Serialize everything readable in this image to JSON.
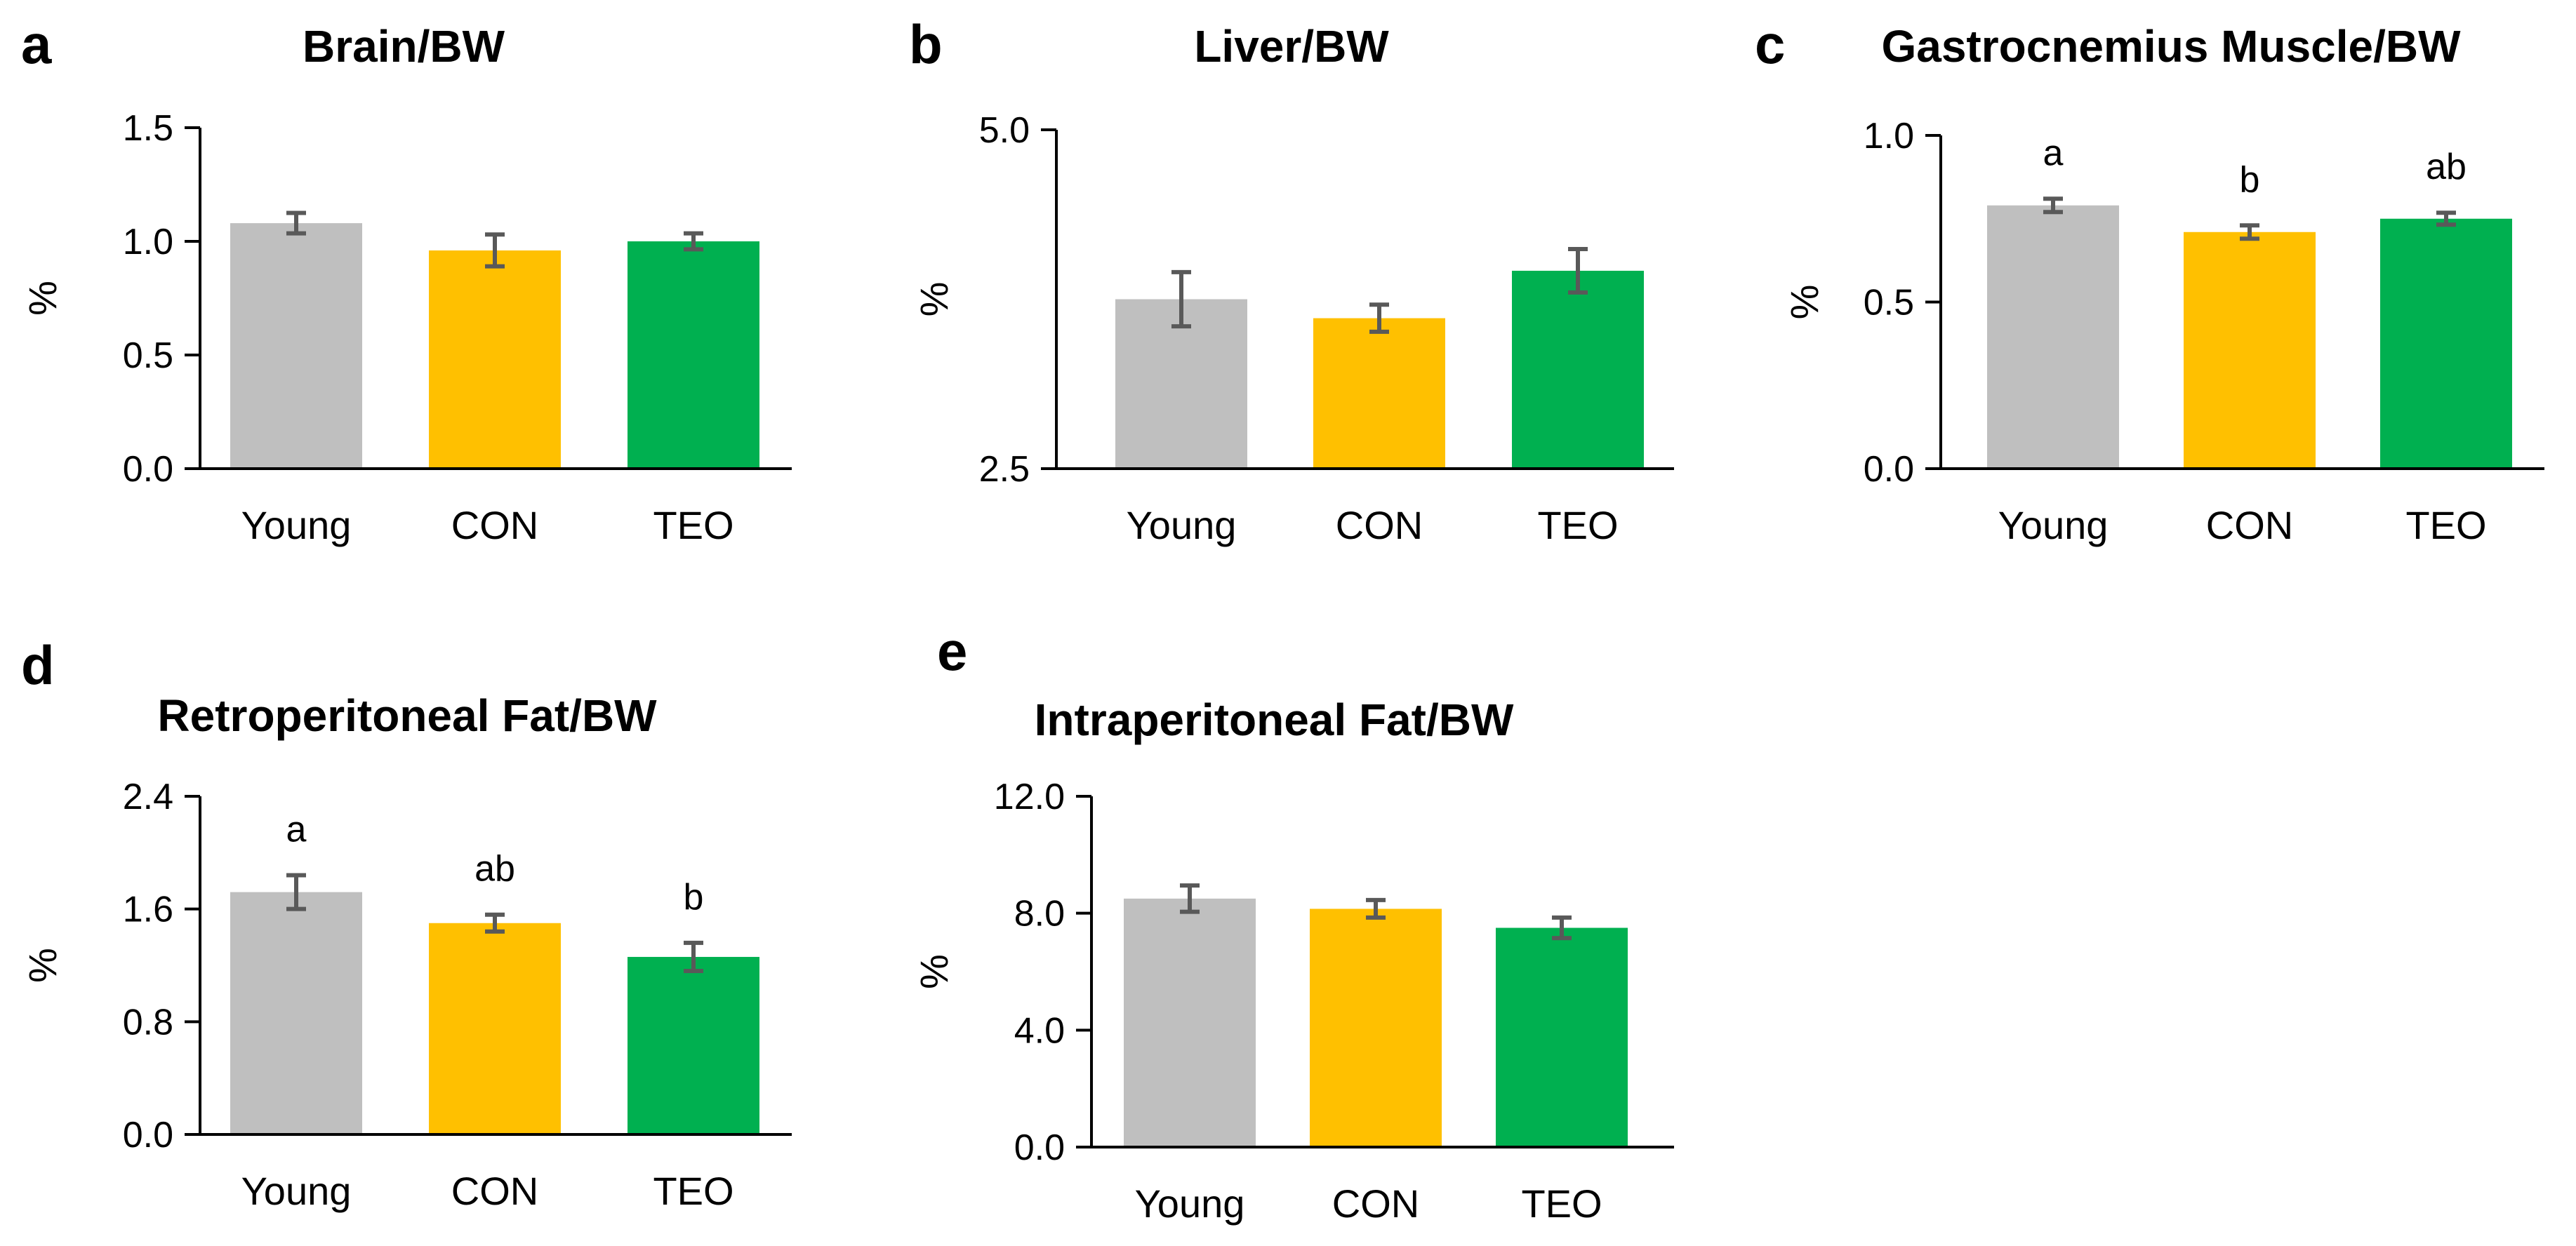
{
  "colors": {
    "Young": "#BFBFBF",
    "CON": "#FFC000",
    "TEO": "#00B050",
    "error": "#595959"
  },
  "chart_data": [
    {
      "panel": "a",
      "type": "bar",
      "title": "Brain/BW",
      "ylabel": "%",
      "categories": [
        "Young",
        "CON",
        "TEO"
      ],
      "values": [
        1.08,
        0.96,
        1.0
      ],
      "errors": [
        0.045,
        0.07,
        0.035
      ],
      "significance": [
        "",
        "",
        ""
      ],
      "ylim": [
        0.0,
        1.5
      ],
      "yticks": [
        0.0,
        0.5,
        1.0,
        1.5
      ],
      "ytick_labels": [
        "0.0",
        "0.5",
        "1.0",
        "1.5"
      ]
    },
    {
      "panel": "b",
      "type": "bar",
      "title": "Liver/BW",
      "ylabel": "%",
      "categories": [
        "Young",
        "CON",
        "TEO"
      ],
      "values": [
        3.75,
        3.61,
        3.96
      ],
      "errors": [
        0.2,
        0.1,
        0.16
      ],
      "significance": [
        "",
        "",
        ""
      ],
      "ylim": [
        2.5,
        5.0
      ],
      "yticks": [
        2.5,
        5.0
      ],
      "ytick_labels": [
        "2.5",
        "5.0"
      ]
    },
    {
      "panel": "c",
      "type": "bar",
      "title": "Gastrocnemius Muscle/BW",
      "ylabel": "%",
      "categories": [
        "Young",
        "CON",
        "TEO"
      ],
      "values": [
        0.79,
        0.71,
        0.75
      ],
      "errors": [
        0.02,
        0.02,
        0.018
      ],
      "significance": [
        "a",
        "b",
        "ab"
      ],
      "ylim": [
        0.0,
        1.0
      ],
      "yticks": [
        0.0,
        0.5,
        1.0
      ],
      "ytick_labels": [
        "0.0",
        "0.5",
        "1.0"
      ]
    },
    {
      "panel": "d",
      "type": "bar",
      "title": "Retroperitoneal Fat/BW",
      "ylabel": "%",
      "categories": [
        "Young",
        "CON",
        "TEO"
      ],
      "values": [
        1.72,
        1.5,
        1.26
      ],
      "errors": [
        0.12,
        0.06,
        0.1
      ],
      "significance": [
        "a",
        "ab",
        "b"
      ],
      "ylim": [
        0.0,
        2.4
      ],
      "yticks": [
        0.0,
        0.8,
        1.6,
        2.4
      ],
      "ytick_labels": [
        "0.0",
        "0.8",
        "1.6",
        "2.4"
      ]
    },
    {
      "panel": "e",
      "type": "bar",
      "title": "Intraperitoneal Fat/BW",
      "ylabel": "%",
      "categories": [
        "Young",
        "CON",
        "TEO"
      ],
      "values": [
        8.5,
        8.15,
        7.5
      ],
      "errors": [
        0.45,
        0.3,
        0.35
      ],
      "significance": [
        "",
        "",
        ""
      ],
      "ylim": [
        0.0,
        12.0
      ],
      "yticks": [
        0.0,
        4.0,
        8.0,
        12.0
      ],
      "ytick_labels": [
        "0.0",
        "4.0",
        "8.0",
        "12.0"
      ]
    }
  ]
}
